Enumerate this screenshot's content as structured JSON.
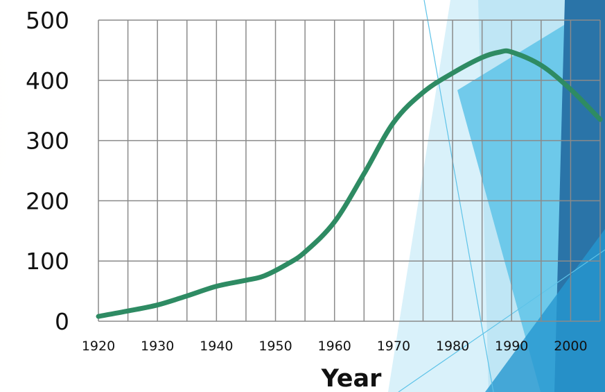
{
  "colors": {
    "line": "#2e8b63",
    "grid": "#8a8a8a",
    "bg_light_blue": "#bfe6f5",
    "bg_mid_blue": "#5ec3e8",
    "bg_dark_blue": "#2a74a8",
    "bg_warm": "#fbe6c8"
  },
  "chart_data": {
    "type": "line",
    "xlabel": "Year",
    "ylabel": "",
    "title": "",
    "xlim": [
      1920,
      2005
    ],
    "ylim": [
      0,
      500
    ],
    "xticks": [
      1920,
      1930,
      1940,
      1950,
      1960,
      1970,
      1980,
      1990,
      2000
    ],
    "yticks": [
      0,
      100,
      200,
      300,
      400,
      500
    ],
    "grid": true,
    "series": [
      {
        "x": [
          1920,
          1925,
          1930,
          1935,
          1940,
          1945,
          1948,
          1952,
          1955,
          1960,
          1965,
          1970,
          1975,
          1980,
          1985,
          1988,
          1990,
          1995,
          2000,
          2005
        ],
        "y": [
          8,
          17,
          27,
          42,
          58,
          68,
          75,
          95,
          115,
          165,
          245,
          330,
          380,
          412,
          438,
          447,
          447,
          425,
          385,
          335
        ]
      }
    ]
  }
}
